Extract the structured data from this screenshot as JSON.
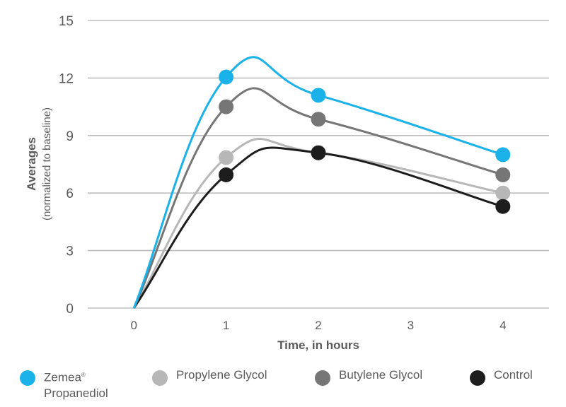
{
  "chart_data": {
    "type": "line",
    "x": [
      0,
      1,
      2,
      4
    ],
    "xticks": [
      "0",
      "1",
      "2",
      "3",
      "4"
    ],
    "xtick_values": [
      0,
      1,
      2,
      3,
      4
    ],
    "xlim": [
      -0.5,
      4.5
    ],
    "ylim": [
      0,
      15
    ],
    "yticks": [
      0,
      3,
      6,
      9,
      12,
      15
    ],
    "xlabel": "Time, in hours",
    "ylabel": "Averages",
    "ylabel_sub": "(normalized to baseline)",
    "grid": "horizontal",
    "legend_position": "bottom",
    "series": [
      {
        "name": "Zemea® Propanediol",
        "values": [
          0,
          12.05,
          11.1,
          8.0
        ],
        "color": "#1ab2e8"
      },
      {
        "name": "Propylene Glycol",
        "values": [
          0,
          7.85,
          8.1,
          6.0
        ],
        "color": "#b7b7b7"
      },
      {
        "name": "Butylene Glycol",
        "values": [
          0,
          10.5,
          9.85,
          6.95
        ],
        "color": "#767676"
      },
      {
        "name": "Control",
        "values": [
          0,
          6.95,
          8.1,
          5.3
        ],
        "color": "#1d1d1d"
      }
    ]
  },
  "legend": {
    "items": [
      {
        "line1": "Zemea",
        "sup": "®",
        "line2": "Propanediol",
        "color": "#1ab2e8"
      },
      {
        "line1": "Propylene Glycol",
        "color": "#b7b7b7"
      },
      {
        "line1": "Butylene Glycol",
        "color": "#767676"
      },
      {
        "line1": "Control",
        "color": "#1d1d1d"
      }
    ]
  }
}
